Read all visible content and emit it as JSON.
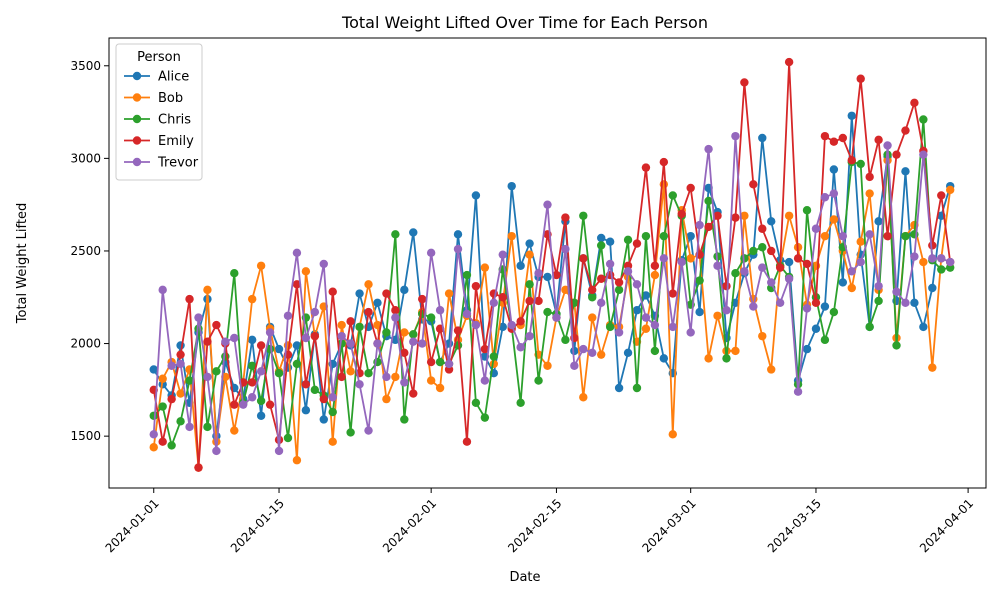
{
  "chart_data": {
    "type": "line",
    "title": "Total Weight Lifted Over Time for Each Person",
    "xlabel": "Date",
    "ylabel": "Total Weight Lifted",
    "x_start": "2024-01-01",
    "x_end": "2024-03-30",
    "xlim": [
      "2023-12-27",
      "2024-04-03"
    ],
    "ylim": [
      1220,
      3650
    ],
    "x_ticks": [
      {
        "date": "2024-01-01",
        "label": "2024-01-01"
      },
      {
        "date": "2024-01-15",
        "label": "2024-01-15"
      },
      {
        "date": "2024-02-01",
        "label": "2024-02-01"
      },
      {
        "date": "2024-02-15",
        "label": "2024-02-15"
      },
      {
        "date": "2024-03-01",
        "label": "2024-03-01"
      },
      {
        "date": "2024-03-15",
        "label": "2024-03-15"
      },
      {
        "date": "2024-04-01",
        "label": "2024-04-01"
      }
    ],
    "y_ticks": [
      1500,
      2000,
      2500,
      3000,
      3500
    ],
    "grid": false,
    "legend": {
      "title": "Person",
      "placement": "top-left"
    },
    "series": [
      {
        "name": "Alice",
        "color": "#1f77b4",
        "values": [
          1860,
          1780,
          1720,
          1990,
          1680,
          2060,
          2240,
          1500,
          1900,
          1760,
          1700,
          2020,
          1610,
          2090,
          1970,
          1870,
          1990,
          1640,
          2050,
          1590,
          1890,
          2000,
          1990,
          2270,
          2090,
          2220,
          2040,
          2020,
          2290,
          2600,
          2130,
          2120,
          1900,
          2000,
          2590,
          2180,
          2800,
          1930,
          1840,
          2090,
          2850,
          2420,
          2540,
          2360,
          2360,
          2160,
          2660,
          1960,
          2460,
          2260,
          2570,
          2550,
          1760,
          1950,
          2180,
          2260,
          2150,
          1920,
          1840,
          2450,
          2580,
          2170,
          2840,
          2710,
          2030,
          2220,
          2380,
          2480,
          3110,
          2660,
          2450,
          2440,
          1800,
          1970,
          2080,
          2200,
          2940,
          2330,
          3230,
          2480,
          2090,
          2660,
          3010,
          2230,
          2930,
          2220,
          2090,
          2300,
          2690,
          2850
        ]
      },
      {
        "name": "Bob",
        "color": "#ff7f0e",
        "values": [
          1440,
          1810,
          1900,
          1730,
          1860,
          1330,
          2290,
          1470,
          1820,
          1530,
          1790,
          2240,
          2420,
          2080,
          1850,
          1990,
          1370,
          2390,
          2040,
          2200,
          1470,
          2100,
          1850,
          2090,
          2320,
          2100,
          1700,
          1820,
          2060,
          2050,
          2170,
          1800,
          1760,
          2270,
          2020,
          2150,
          2110,
          2410,
          1890,
          2220,
          2580,
          2100,
          2480,
          1940,
          1880,
          2140,
          2290,
          2220,
          1710,
          2140,
          1940,
          2100,
          2090,
          2360,
          2010,
          2080,
          2370,
          2860,
          1510,
          2720,
          2460,
          2480,
          1920,
          2150,
          1960,
          1960,
          2690,
          2240,
          2040,
          1860,
          2420,
          2690,
          2520,
          2210,
          2420,
          2580,
          2670,
          2500,
          2300,
          2550,
          2810,
          2290,
          2990,
          2030,
          2580,
          2640,
          2440,
          1870,
          2460,
          2830
        ]
      },
      {
        "name": "Chris",
        "color": "#2ca02c",
        "values": [
          1610,
          1660,
          1450,
          1580,
          1800,
          2080,
          1550,
          1850,
          1930,
          2380,
          1680,
          1880,
          1690,
          1970,
          1840,
          1490,
          1890,
          2140,
          1750,
          1720,
          1630,
          2000,
          1520,
          2090,
          1840,
          1900,
          2060,
          2590,
          1590,
          2050,
          2160,
          2140,
          1900,
          1890,
          1990,
          2370,
          1680,
          1600,
          1930,
          2400,
          2090,
          1680,
          2320,
          1800,
          2170,
          2160,
          2020,
          2220,
          2690,
          2250,
          2530,
          2090,
          2290,
          2560,
          1760,
          2580,
          1960,
          2580,
          2800,
          2690,
          2210,
          2340,
          2770,
          2470,
          1920,
          2380,
          2460,
          2500,
          2520,
          2300,
          2420,
          2360,
          1780,
          2720,
          2250,
          2020,
          2170,
          2520,
          2980,
          2970,
          2090,
          2230,
          3020,
          1990,
          2580,
          2590,
          3210,
          2450,
          2400,
          2410
        ]
      },
      {
        "name": "Emily",
        "color": "#d62728",
        "values": [
          1750,
          1470,
          1700,
          1940,
          2240,
          1330,
          2010,
          2100,
          2000,
          1670,
          1790,
          1790,
          1990,
          1670,
          1480,
          1940,
          2320,
          1780,
          2040,
          1700,
          2280,
          1820,
          2120,
          1840,
          2170,
          2000,
          2270,
          2180,
          1950,
          1730,
          2240,
          1900,
          2080,
          1860,
          2070,
          1470,
          2310,
          1970,
          2270,
          2250,
          2080,
          2120,
          2230,
          2230,
          2590,
          2370,
          2680,
          2030,
          2460,
          2290,
          2350,
          2370,
          2330,
          2420,
          2540,
          2950,
          2420,
          2980,
          2270,
          2700,
          2840,
          2480,
          2630,
          2690,
          2310,
          2680,
          3410,
          2860,
          2620,
          2500,
          2410,
          3520,
          2460,
          2430,
          2220,
          3120,
          3090,
          3110,
          2990,
          3430,
          2900,
          3100,
          2580,
          3020,
          3150,
          3300,
          3040,
          2530,
          2800,
          2440
        ]
      },
      {
        "name": "Trevor",
        "color": "#9467bd",
        "values": [
          1510,
          2290,
          1880,
          1890,
          1550,
          2140,
          1820,
          1420,
          2010,
          2030,
          1670,
          1710,
          1850,
          2060,
          1420,
          2150,
          2490,
          2030,
          2170,
          2430,
          1710,
          2040,
          2000,
          1780,
          1530,
          2000,
          1820,
          2140,
          1790,
          2010,
          2000,
          2490,
          2180,
          1890,
          2510,
          2160,
          2100,
          1800,
          2220,
          2480,
          2100,
          1980,
          2040,
          2380,
          2750,
          2140,
          2510,
          1880,
          1970,
          1950,
          2220,
          2430,
          2060,
          2390,
          2320,
          2140,
          2100,
          2460,
          2090,
          2440,
          2060,
          2640,
          3050,
          2420,
          2180,
          3120,
          2390,
          2200,
          2410,
          2330,
          2220,
          2350,
          1740,
          2190,
          2620,
          2790,
          2810,
          2580,
          2390,
          2440,
          2590,
          2310,
          3070,
          2280,
          2220,
          2470,
          3020,
          2460,
          2460,
          2440
        ]
      }
    ]
  }
}
